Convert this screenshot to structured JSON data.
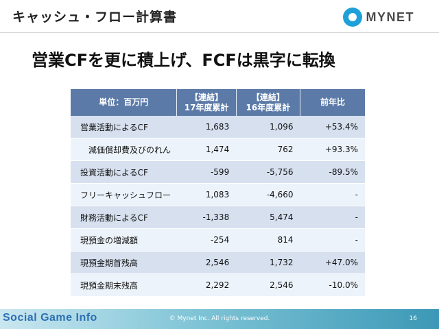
{
  "header": {
    "title": "キャッシュ・フロー計算書",
    "logo_text": "MYNET",
    "logo_color": "#1fa0d8"
  },
  "main_heading": "営業CFを更に積上げ、FCFは黒字に転換",
  "table": {
    "headers": [
      {
        "line1": "単位：百万円",
        "line2": ""
      },
      {
        "line1": "【連結】",
        "line2": "17年度累計"
      },
      {
        "line1": "【連結】",
        "line2": "16年度累計"
      },
      {
        "line1": "前年比",
        "line2": ""
      }
    ],
    "rows": [
      {
        "label": "営業活動によるCF",
        "fy17": "1,683",
        "fy16": "1,096",
        "yoy": "+53.4%"
      },
      {
        "label": "減価償却費及びのれん",
        "fy17": "1,474",
        "fy16": "762",
        "yoy": "+93.3%"
      },
      {
        "label": "投資活動によるCF",
        "fy17": "-599",
        "fy16": "-5,756",
        "yoy": "-89.5%"
      },
      {
        "label": "フリーキャッシュフロー",
        "fy17": "1,083",
        "fy16": "-4,660",
        "yoy": "-"
      },
      {
        "label": "財務活動によるCF",
        "fy17": "-1,338",
        "fy16": "5,474",
        "yoy": "-"
      },
      {
        "label": "現預金の増減額",
        "fy17": "-254",
        "fy16": "814",
        "yoy": "-"
      },
      {
        "label": "現預金期首残高",
        "fy17": "2,546",
        "fy16": "1,732",
        "yoy": "+47.0%"
      },
      {
        "label": "現預金期末残高",
        "fy17": "2,292",
        "fy16": "2,546",
        "yoy": "-10.0%"
      }
    ]
  },
  "footer": {
    "copyright": "© Mynet Inc. All rights reserved.",
    "page_number": "16",
    "watermark": "Social Game Info"
  }
}
